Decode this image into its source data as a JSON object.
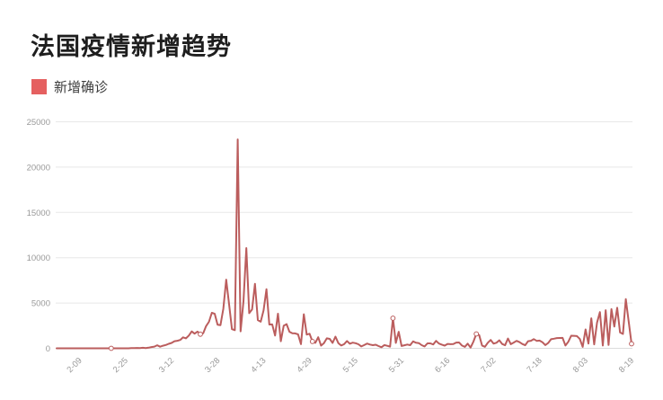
{
  "page": {
    "background": "#ffffff"
  },
  "header": {
    "title": "法国疫情新增趋势"
  },
  "legend": {
    "label": "新增确诊",
    "swatch_color": "#e56060"
  },
  "chart_data": {
    "type": "line",
    "title": "法国疫情新增趋势",
    "series_name": "新增确诊",
    "line_color": "#bb5d5d",
    "marker_fill": "#ffffff",
    "grid_color": "#e8e8e8",
    "axis_line_color": "#dcdcdc",
    "axis_label_color": "#999999",
    "legend_position": "top-left",
    "grid": true,
    "ylim": [
      0,
      25000
    ],
    "y_ticks": [
      0,
      5000,
      10000,
      15000,
      20000,
      25000
    ],
    "y_tick_labels": [
      "0",
      "5000",
      "10000",
      "15000",
      "20000",
      "25000"
    ],
    "x_tick_labels": [
      "2-09",
      "2-25",
      "3-12",
      "3-28",
      "4-13",
      "4-29",
      "5-15",
      "5-31",
      "6-16",
      "7-02",
      "7-18",
      "8-03",
      "8-19"
    ],
    "x_first_tick_index": 8,
    "x_tick_interval": 16,
    "x_label_rotation": 45,
    "marker_indices": [
      19,
      50,
      89,
      117,
      146,
      200
    ],
    "values": [
      0,
      0,
      0,
      0,
      0,
      0,
      0,
      0,
      0,
      0,
      0,
      0,
      0,
      0,
      0,
      0,
      0,
      0,
      0,
      0,
      0,
      0,
      0,
      0,
      0,
      3,
      20,
      19,
      43,
      30,
      61,
      21,
      73,
      138,
      190,
      336,
      177,
      286,
      372,
      497,
      595,
      785,
      838,
      924,
      1210,
      1097,
      1404,
      1861,
      1617,
      1847,
      1559,
      1662,
      2448,
      2931,
      3922,
      3809,
      2599,
      2556,
      4376,
      7578,
      4861,
      2116,
      2003,
      23060,
      1873,
      5171,
      11059,
      3881,
      4286,
      7120,
      3114,
      2937,
      4188,
      6524,
      2633,
      2641,
      1405,
      3824,
      785,
      2489,
      2667,
      1827,
      1653,
      1645,
      1537,
      461,
      3764,
      1520,
      1607,
      758,
      604,
      1220,
      297,
      576,
      1104,
      1037,
      600,
      1288,
      579,
      312,
      456,
      802,
      507,
      622,
      563,
      447,
      209,
      358,
      524,
      418,
      351,
      393,
      250,
      115,
      358,
      276,
      191,
      3325,
      597,
      1828,
      257,
      338,
      418,
      352,
      767,
      611,
      579,
      343,
      211,
      542,
      545,
      425,
      821,
      526,
      407,
      296,
      489,
      458,
      467,
      637,
      641,
      310,
      162,
      517,
      81,
      740,
      1588,
      1461,
      310,
      166,
      620,
      918,
      517,
      611,
      886,
      475,
      341,
      1081,
      460,
      633,
      821,
      688,
      475,
      333,
      780,
      836,
      1013,
      826,
      857,
      675,
      355,
      584,
      998,
      1062,
      1130,
      1139,
      1155,
      303,
      725,
      1392,
      1377,
      1346,
      1033,
      160,
      2087,
      522,
      3310,
      435,
      2846,
      3996,
      311,
      4203,
      365,
      4326,
      2405,
      4471,
      1748,
      1585,
      5429,
      2969,
      493
    ]
  }
}
